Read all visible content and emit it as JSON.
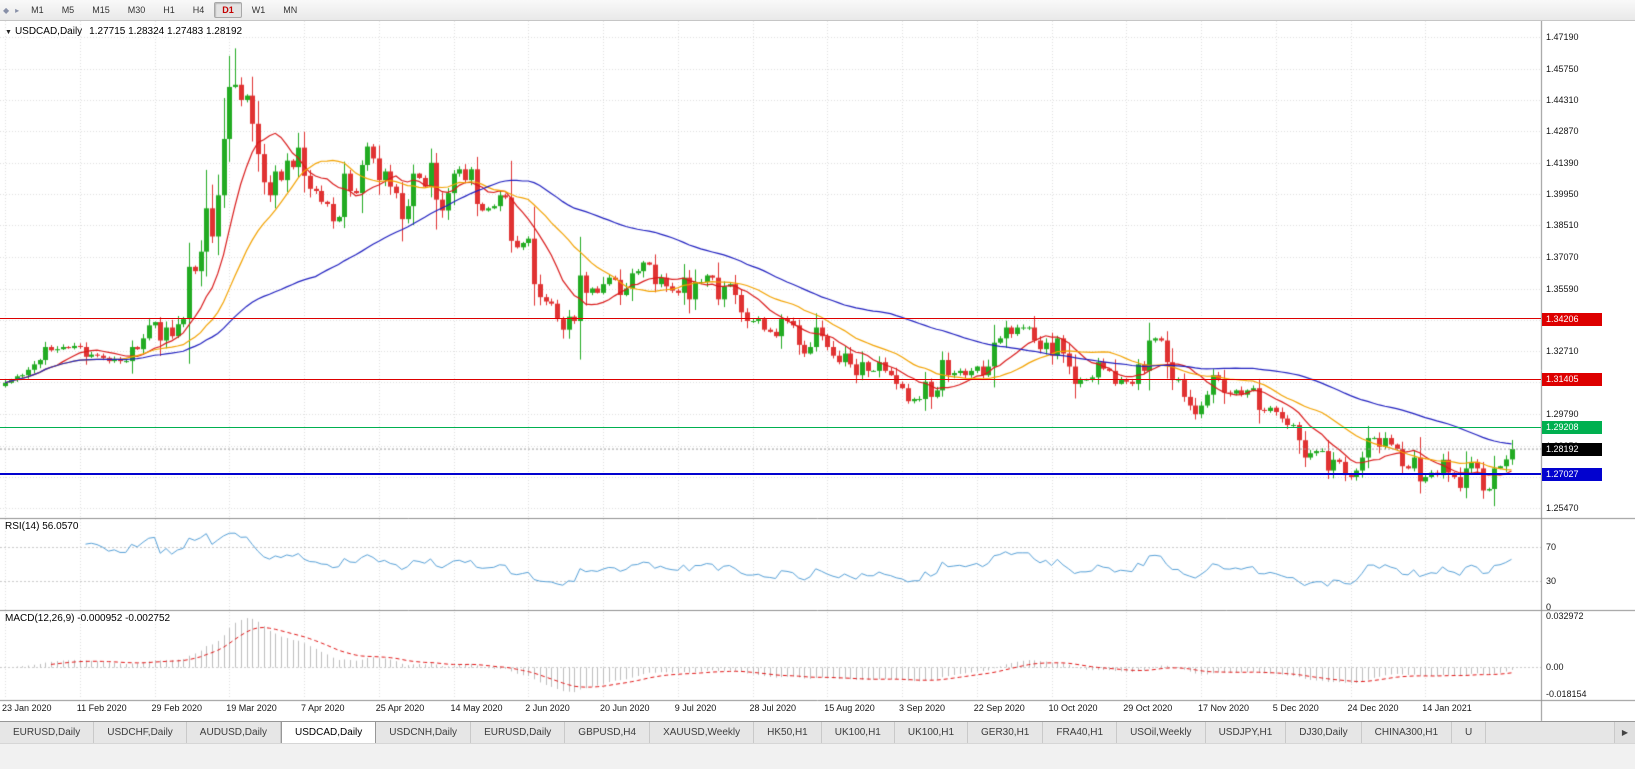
{
  "toolbar": {
    "handle_icon": "◆",
    "more_icon": "▸",
    "timeframes": [
      "M1",
      "M5",
      "M15",
      "M30",
      "H1",
      "H4",
      "D1",
      "W1",
      "MN"
    ],
    "active": "D1"
  },
  "chart_title": {
    "dropdown_icon": "▼",
    "symbol": "USDCAD,Daily",
    "ohlc_text": "1.27715 1.28324 1.27483 1.28192"
  },
  "chart_data": {
    "type": "candlestick",
    "title": "USDCAD,Daily",
    "x_labels": [
      "23 Jan 2020",
      "11 Feb 2020",
      "29 Feb 2020",
      "19 Mar 2020",
      "7 Apr 2020",
      "25 Apr 2020",
      "14 May 2020",
      "2 Jun 2020",
      "20 Jun 2020",
      "9 Jul 2020",
      "28 Jul 2020",
      "15 Aug 2020",
      "3 Sep 2020",
      "22 Sep 2020",
      "10 Oct 2020",
      "29 Oct 2020",
      "17 Nov 2020",
      "5 Dec 2020",
      "24 Dec 2020",
      "14 Jan 2021"
    ],
    "price_axis": {
      "view_max": 1.4785,
      "view_min": 1.2515,
      "ticks": [
        "1.47190",
        "1.45750",
        "1.44310",
        "1.42870",
        "1.41390",
        "1.39950",
        "1.38510",
        "1.37070",
        "1.35590",
        "1.34150",
        "1.32710",
        "1.31270",
        "1.29790",
        "1.28350",
        "1.26910",
        "1.25470"
      ]
    },
    "closes": [
      1.3125,
      1.314,
      1.3155,
      1.316,
      1.3185,
      1.321,
      1.323,
      1.329,
      1.3275,
      1.328,
      1.329,
      1.3285,
      1.3295,
      1.329,
      1.3245,
      1.3255,
      1.325,
      1.324,
      1.3225,
      1.3235,
      1.3225,
      1.3225,
      1.329,
      1.328,
      1.333,
      1.339,
      1.3405,
      1.332,
      1.338,
      1.334,
      1.3395,
      1.342,
      1.366,
      1.364,
      1.373,
      1.393,
      1.38,
      1.399,
      1.425,
      1.449,
      1.45,
      1.443,
      1.445,
      1.432,
      1.418,
      1.405,
      1.399,
      1.41,
      1.406,
      1.415,
      1.412,
      1.421,
      1.408,
      1.402,
      1.401,
      1.396,
      1.395,
      1.387,
      1.389,
      1.409,
      1.401,
      1.4,
      1.413,
      1.4215,
      1.416,
      1.406,
      1.41,
      1.403,
      1.4,
      1.388,
      1.394,
      1.409,
      1.407,
      1.403,
      1.414,
      1.397,
      1.392,
      1.4,
      1.409,
      1.411,
      1.406,
      1.411,
      1.395,
      1.392,
      1.393,
      1.394,
      1.399,
      1.398,
      1.378,
      1.375,
      1.377,
      1.379,
      1.358,
      1.352,
      1.35,
      1.349,
      1.342,
      1.337,
      1.343,
      1.341,
      1.362,
      1.354,
      1.356,
      1.354,
      1.358,
      1.361,
      1.36,
      1.353,
      1.356,
      1.363,
      1.364,
      1.368,
      1.367,
      1.358,
      1.361,
      1.357,
      1.355,
      1.354,
      1.361,
      1.351,
      1.359,
      1.359,
      1.362,
      1.361,
      1.351,
      1.357,
      1.358,
      1.353,
      1.345,
      1.341,
      1.341,
      1.342,
      1.337,
      1.336,
      1.334,
      1.342,
      1.341,
      1.339,
      1.33,
      1.326,
      1.329,
      1.338,
      1.334,
      1.329,
      1.325,
      1.322,
      1.326,
      1.321,
      1.316,
      1.322,
      1.318,
      1.318,
      1.322,
      1.318,
      1.316,
      1.312,
      1.31,
      1.304,
      1.305,
      1.305,
      1.313,
      1.306,
      1.309,
      1.323,
      1.316,
      1.317,
      1.318,
      1.316,
      1.318,
      1.32,
      1.316,
      1.32,
      1.331,
      1.333,
      1.338,
      1.335,
      1.338,
      1.338,
      1.338,
      1.332,
      1.328,
      1.331,
      1.325,
      1.333,
      1.326,
      1.32,
      1.312,
      1.314,
      1.314,
      1.315,
      1.322,
      1.319,
      1.318,
      1.312,
      1.314,
      1.313,
      1.312,
      1.321,
      1.318,
      1.332,
      1.333,
      1.332,
      1.322,
      1.314,
      1.314,
      1.306,
      1.302,
      1.298,
      1.302,
      1.307,
      1.316,
      1.314,
      1.308,
      1.3075,
      1.309,
      1.307,
      1.309,
      1.31,
      1.3,
      1.2995,
      1.301,
      1.299,
      1.296,
      1.293,
      1.293,
      1.286,
      1.278,
      1.28,
      1.281,
      1.281,
      1.272,
      1.277,
      1.276,
      1.27,
      1.269,
      1.272,
      1.278,
      1.287,
      1.287,
      1.283,
      1.287,
      1.284,
      1.282,
      1.274,
      1.273,
      1.278,
      1.267,
      1.269,
      1.271,
      1.27,
      1.277,
      1.271,
      1.269,
      1.264,
      1.273,
      1.276,
      1.273,
      1.2628,
      1.2635,
      1.273,
      1.274,
      1.27715,
      1.28192
    ],
    "extremes": {
      "peak_index": 40,
      "peak_high": 1.4668,
      "trough_index": 257,
      "trough_low": 1.259
    },
    "up_color": "#22ab22",
    "down_color": "#e03232",
    "moving_averages": [
      {
        "period": 10,
        "color": "#d91a1a"
      },
      {
        "period": 21,
        "color": "#f2a200"
      },
      {
        "period": 55,
        "color": "#1f1fbf"
      }
    ],
    "levels": [
      {
        "value": 1.34206,
        "label": "1.34206",
        "color": "#dd0000",
        "thickness": 1
      },
      {
        "value": 1.31405,
        "label": "1.31405",
        "color": "#dd0000",
        "thickness": 1
      },
      {
        "value": 1.29208,
        "label": "1.29208",
        "color": "#00b050",
        "thickness": 1
      },
      {
        "value": 1.27027,
        "label": "1.27027",
        "color": "#0202cf",
        "thickness": 2
      }
    ],
    "current_price": {
      "value": 1.28192,
      "label": "1.28192",
      "tag_bg": "#000000",
      "line_color": "#9a9a9a"
    },
    "rsi": {
      "name": "RSI(14)",
      "value_text": "56.0570",
      "period": 14,
      "color": "#559fd6",
      "levels": [
        {
          "label": "70",
          "value": 70
        },
        {
          "label": "30",
          "value": 30
        },
        {
          "label": "0",
          "value": 0
        }
      ]
    },
    "macd": {
      "name": "MACD(12,26,9)",
      "value_text": "-0.000952 -0.002752",
      "fast": 12,
      "slow": 26,
      "signal": 9,
      "hist_color": "#bdbdbd",
      "signal_color": "#e01616",
      "scale": {
        "max": 0.0345,
        "min": -0.0195,
        "labels": [
          {
            "label": "0.032972",
            "value": 0.032972
          },
          {
            "label": "0.00",
            "value": 0
          },
          {
            "label": "-0.018154",
            "value": -0.018154
          }
        ]
      }
    }
  },
  "tabs": {
    "items": [
      "EURUSD,Daily",
      "USDCHF,Daily",
      "AUDUSD,Daily",
      "USDCAD,Daily",
      "USDCNH,Daily",
      "EURUSD,Daily",
      "GBPUSD,H4",
      "XAUUSD,Weekly",
      "HK50,H1",
      "UK100,H1",
      "UK100,H1",
      "GER30,H1",
      "FRA40,H1",
      "USOil,Weekly",
      "USDJPY,H1",
      "DJ30,Daily",
      "CHINA300,H1",
      "U"
    ],
    "active_index": 3,
    "scroll_icon": "▶"
  }
}
